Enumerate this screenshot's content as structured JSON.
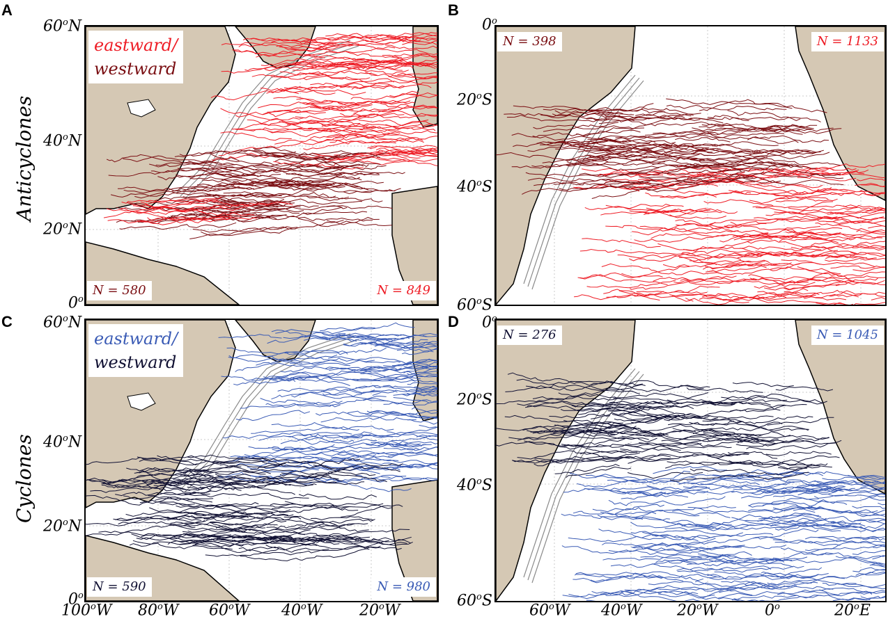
{
  "panels": {
    "A": {
      "letter": "A",
      "legend_east": "eastward/",
      "legend_west": "westward",
      "n_west": "N = 580",
      "n_east": "N = 849"
    },
    "B": {
      "letter": "B",
      "n_west": "N = 398",
      "n_east": "N = 1133"
    },
    "C": {
      "letter": "C",
      "legend_east": "eastward/",
      "legend_west": "westward",
      "n_west": "N = 590",
      "n_east": "N = 980"
    },
    "D": {
      "letter": "D",
      "n_west": "N = 276",
      "n_east": "N = 1045"
    }
  },
  "row_labels": {
    "top": "Anticyclones",
    "bottom": "Cyclones"
  },
  "ticks": {
    "north_lat": [
      "60",
      "N",
      "40",
      "N",
      "20",
      "N",
      "0",
      ""
    ],
    "south_lat": [
      "0",
      "",
      "20",
      "S",
      "40",
      "S",
      "60",
      "S"
    ],
    "north_lon": [
      "100",
      "W",
      "80",
      "W",
      "60",
      "W",
      "40",
      "W",
      "20",
      "W"
    ],
    "south_lon": [
      "60",
      "W",
      "40",
      "W",
      "20",
      "W",
      "0",
      "",
      "20",
      "E"
    ]
  },
  "colors": {
    "anticyclone_east": "#ee1c25",
    "anticyclone_west": "#7a0e12",
    "cyclone_east": "#3a5bb5",
    "cyclone_west": "#111133",
    "land": "#d5c8b4",
    "bathymetry": "#8a8a8a"
  }
}
